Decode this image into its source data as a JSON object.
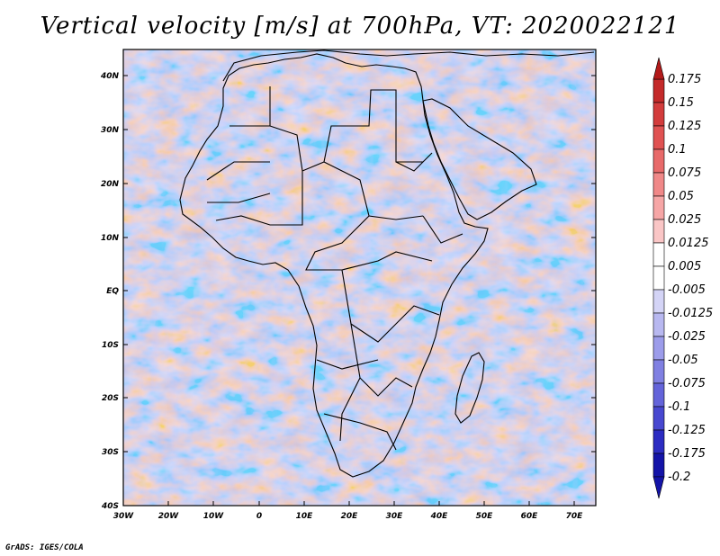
{
  "title": "Vertical velocity [m/s] at 700hPa, VT: 2020022121",
  "footer": "GrADS: IGES/COLA",
  "lat_labels": [
    "40N",
    "30N",
    "20N",
    "10N",
    "EQ",
    "10S",
    "20S",
    "30S",
    "40S"
  ],
  "lon_labels": [
    "30W",
    "20W",
    "10W",
    "0",
    "10E",
    "20E",
    "30E",
    "40E",
    "50E",
    "60E",
    "70E"
  ],
  "colorbar": {
    "labels": [
      "0.175",
      "0.15",
      "0.125",
      "0.1",
      "0.075",
      "0.05",
      "0.025",
      "0.0125",
      "0.005",
      "-0.005",
      "-0.0125",
      "-0.025",
      "-0.05",
      "-0.075",
      "-0.1",
      "-0.125",
      "-0.175",
      "-0.2"
    ],
    "colors": [
      "#b31a1a",
      "#c42a2a",
      "#d33c3c",
      "#e05252",
      "#e86a6a",
      "#f08888",
      "#f6a6a6",
      "#fac6c6",
      "#ffffff",
      "#ffffff",
      "#d4d4f6",
      "#b8b8f0",
      "#9c9cea",
      "#8080e2",
      "#6464da",
      "#4848d0",
      "#2c2cc2",
      "#1414a8"
    ]
  }
}
